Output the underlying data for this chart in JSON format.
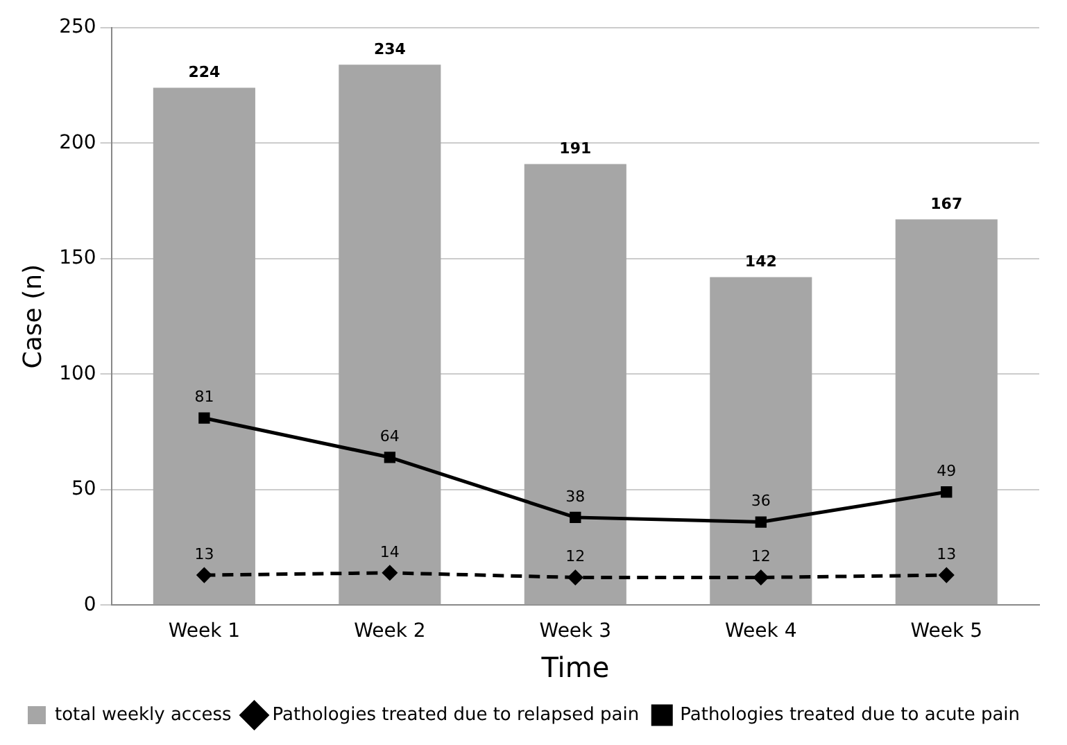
{
  "chart_data": {
    "type": "bar",
    "xlabel": "Time",
    "ylabel": "Case (n)",
    "categories": [
      "Week 1",
      "Week 2",
      "Week 3",
      "Week 4",
      "Week 5"
    ],
    "series": [
      {
        "name": "total weekly access",
        "color": "#a6a6a6",
        "values": [
          224,
          234,
          191,
          142,
          167
        ]
      },
      {
        "name": "Pathologies treated due to relapsed pain",
        "type": "line",
        "color": "#000000",
        "marker": "diamond",
        "line_style": "dashed",
        "values": [
          13,
          14,
          12,
          12,
          13
        ]
      },
      {
        "name": "Pathologies treated due to acute pain",
        "type": "line",
        "color": "#000000",
        "marker": "square",
        "line_style": "solid",
        "values": [
          81,
          64,
          38,
          36,
          49
        ]
      }
    ],
    "ylim": [
      0,
      250
    ],
    "yticks": [
      0,
      50,
      100,
      150,
      200,
      250
    ],
    "grid": "y",
    "legend": "bottom",
    "data_labels": true
  }
}
